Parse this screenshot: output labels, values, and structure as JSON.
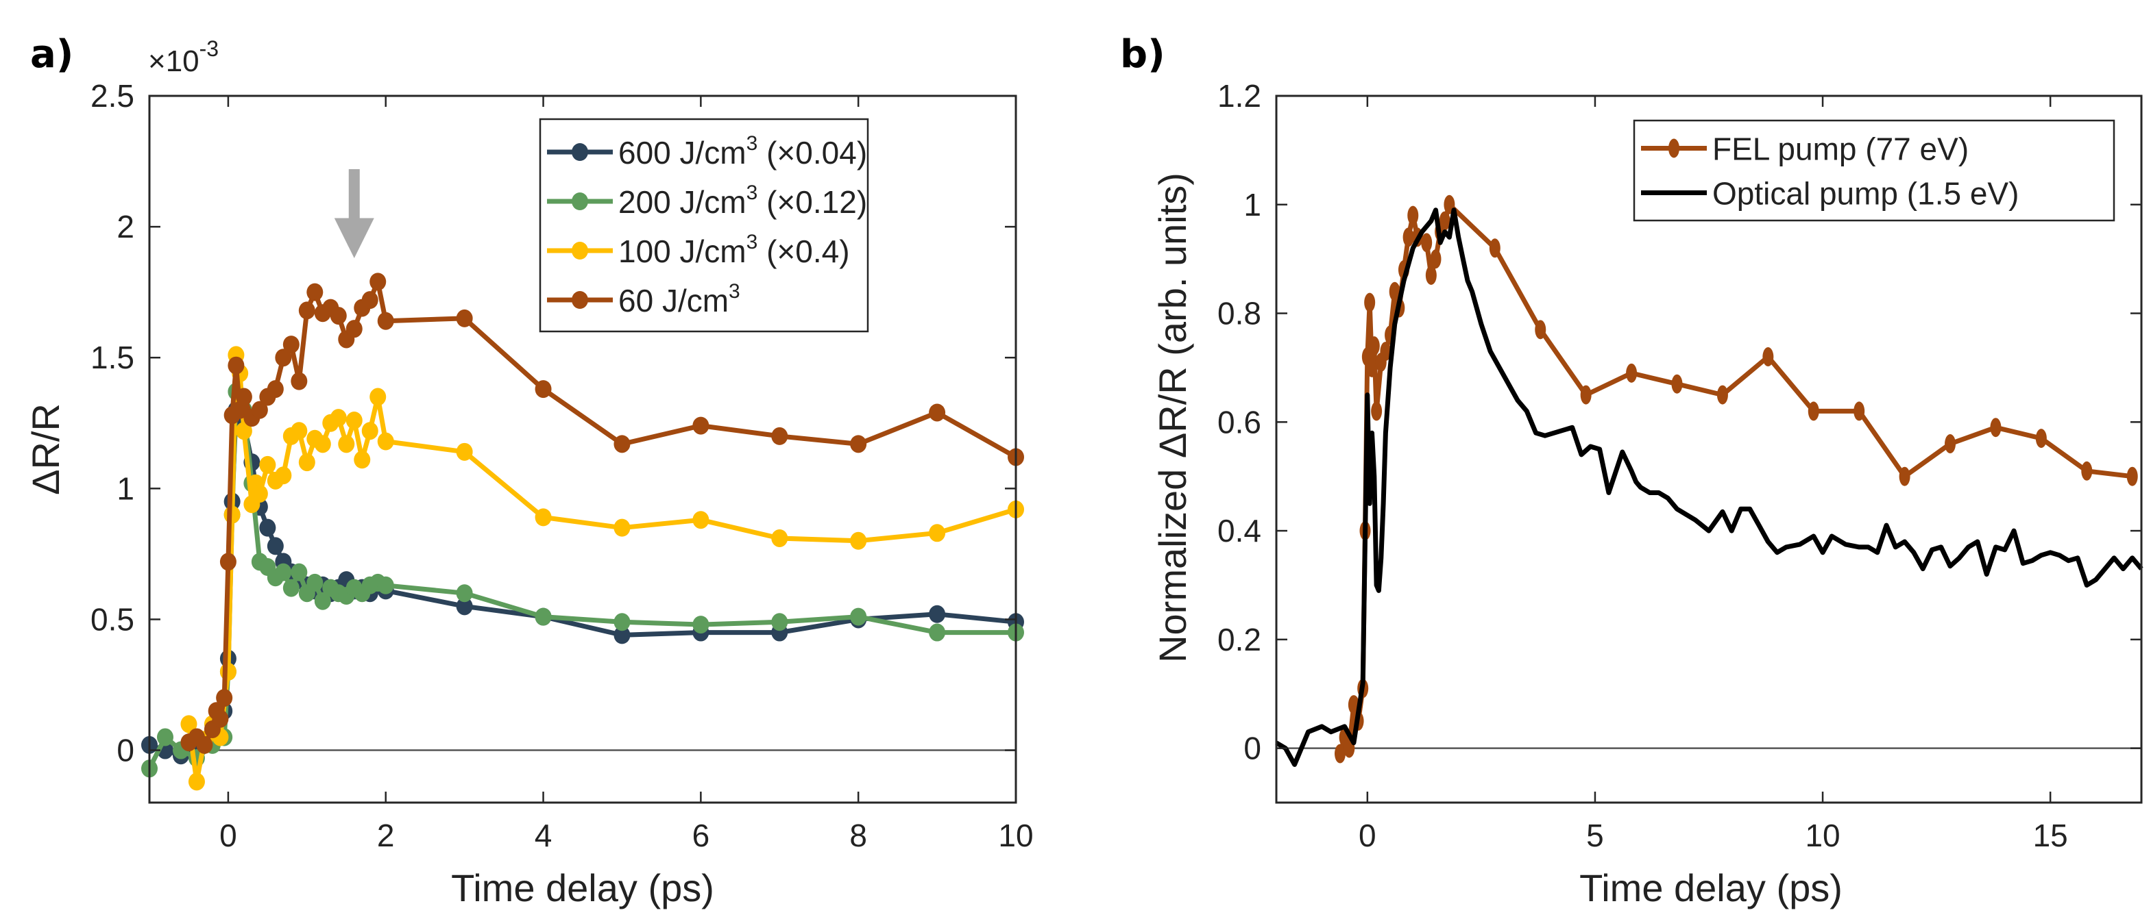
{
  "chart_data": [
    {
      "panel_label": "a)",
      "type": "line",
      "title": "",
      "xlabel": "Time delay (ps)",
      "ylabel": "ΔR/R",
      "y_exponent": "×10",
      "y_exponent_power": "-3",
      "xlim": [
        -1,
        10
      ],
      "ylim": [
        -0.2,
        2.5
      ],
      "xticks": [
        0,
        2,
        4,
        6,
        8,
        10
      ],
      "yticks": [
        0,
        0.5,
        1,
        1.5,
        2,
        2.5
      ],
      "xtick_labels": [
        "0",
        "2",
        "4",
        "6",
        "8",
        "10"
      ],
      "ytick_labels": [
        "0",
        "0.5",
        "1",
        "1.5",
        "2",
        "2.5"
      ],
      "zero_line": true,
      "grid": false,
      "legend_position": "top-right",
      "annotation": {
        "type": "arrow",
        "direction": "down",
        "x": 1.6,
        "y_from": 2.22,
        "y_to": 1.88,
        "color": "#a8a8a8"
      },
      "series": [
        {
          "name": "600 J/cm",
          "sup": "3",
          "suffix": " (×0.04)",
          "color": "#2b4259",
          "x": [
            -1.0,
            -0.8,
            -0.6,
            -0.4,
            -0.2,
            -0.05,
            0.0,
            0.05,
            0.1,
            0.2,
            0.3,
            0.4,
            0.5,
            0.6,
            0.7,
            0.8,
            0.9,
            1.0,
            1.1,
            1.2,
            1.3,
            1.4,
            1.5,
            1.6,
            1.7,
            1.8,
            1.9,
            2.0,
            3.0,
            4.0,
            5.0,
            6.0,
            7.0,
            8.0,
            9.0,
            10.0
          ],
          "y": [
            0.02,
            0.0,
            -0.02,
            0.02,
            0.05,
            0.15,
            0.35,
            0.95,
            1.3,
            1.25,
            1.1,
            0.93,
            0.85,
            0.78,
            0.72,
            0.68,
            0.65,
            0.63,
            0.61,
            0.63,
            0.6,
            0.62,
            0.65,
            0.61,
            0.62,
            0.6,
            0.63,
            0.61,
            0.55,
            0.51,
            0.44,
            0.45,
            0.45,
            0.5,
            0.52,
            0.49
          ]
        },
        {
          "name": "200 J/cm",
          "sup": "3",
          "suffix": " (×0.12)",
          "color": "#5d9c5b",
          "x": [
            -1.0,
            -0.8,
            -0.6,
            -0.4,
            -0.2,
            -0.05,
            0.0,
            0.05,
            0.1,
            0.2,
            0.3,
            0.4,
            0.5,
            0.6,
            0.7,
            0.8,
            0.9,
            1.0,
            1.1,
            1.2,
            1.3,
            1.4,
            1.5,
            1.6,
            1.7,
            1.8,
            1.9,
            2.0,
            3.0,
            4.0,
            5.0,
            6.0,
            7.0,
            8.0,
            9.0,
            10.0
          ],
          "y": [
            -0.07,
            0.05,
            0.0,
            -0.03,
            0.02,
            0.05,
            0.3,
            0.9,
            1.37,
            1.3,
            1.02,
            0.72,
            0.7,
            0.66,
            0.68,
            0.62,
            0.68,
            0.6,
            0.64,
            0.57,
            0.62,
            0.6,
            0.59,
            0.62,
            0.6,
            0.63,
            0.64,
            0.63,
            0.6,
            0.51,
            0.49,
            0.48,
            0.49,
            0.51,
            0.45,
            0.45
          ]
        },
        {
          "name": "100 J/cm",
          "sup": "3",
          "suffix": " (×0.4)",
          "color": "#ffbd00",
          "x": [
            -0.5,
            -0.4,
            -0.3,
            -0.2,
            -0.1,
            0.0,
            0.05,
            0.1,
            0.15,
            0.2,
            0.3,
            0.35,
            0.4,
            0.5,
            0.6,
            0.7,
            0.8,
            0.9,
            1.0,
            1.1,
            1.2,
            1.3,
            1.4,
            1.5,
            1.6,
            1.7,
            1.8,
            1.9,
            2.0,
            3.0,
            4.0,
            5.0,
            6.0,
            7.0,
            8.0,
            9.0,
            10.0
          ],
          "y": [
            0.1,
            -0.12,
            0.04,
            0.1,
            0.05,
            0.3,
            0.9,
            1.51,
            1.44,
            1.22,
            0.94,
            1.02,
            0.98,
            1.09,
            1.03,
            1.05,
            1.2,
            1.22,
            1.1,
            1.19,
            1.17,
            1.25,
            1.27,
            1.17,
            1.26,
            1.11,
            1.22,
            1.35,
            1.18,
            1.14,
            0.89,
            0.85,
            0.88,
            0.81,
            0.8,
            0.83,
            0.92
          ]
        },
        {
          "name": "60 J/cm",
          "sup": "3",
          "suffix": "",
          "color": "#a2490f",
          "x": [
            -0.5,
            -0.4,
            -0.3,
            -0.2,
            -0.15,
            -0.1,
            -0.05,
            0.0,
            0.05,
            0.1,
            0.15,
            0.2,
            0.3,
            0.4,
            0.5,
            0.6,
            0.7,
            0.8,
            0.9,
            1.0,
            1.1,
            1.2,
            1.3,
            1.4,
            1.5,
            1.6,
            1.7,
            1.8,
            1.9,
            2.0,
            3.0,
            4.0,
            5.0,
            6.0,
            7.0,
            8.0,
            9.0,
            10.0
          ],
          "y": [
            0.03,
            0.05,
            0.02,
            0.08,
            0.15,
            0.12,
            0.2,
            0.72,
            1.28,
            1.47,
            1.3,
            1.35,
            1.27,
            1.3,
            1.35,
            1.38,
            1.5,
            1.55,
            1.41,
            1.68,
            1.75,
            1.67,
            1.69,
            1.66,
            1.57,
            1.61,
            1.69,
            1.72,
            1.79,
            1.64,
            1.65,
            1.38,
            1.17,
            1.24,
            1.2,
            1.17,
            1.29,
            1.12
          ]
        }
      ]
    },
    {
      "panel_label": "b)",
      "type": "line",
      "title": "",
      "xlabel": "Time delay (ps)",
      "ylabel": "Normalized ΔR/R (arb. units)",
      "xlim": [
        -2,
        17
      ],
      "ylim": [
        -0.1,
        1.2
      ],
      "xticks": [
        0,
        5,
        10,
        15
      ],
      "yticks": [
        0,
        0.2,
        0.4,
        0.6,
        0.8,
        1,
        1.2
      ],
      "xtick_labels": [
        "0",
        "5",
        "10",
        "15"
      ],
      "ytick_labels": [
        "0",
        "0.2",
        "0.4",
        "0.6",
        "0.8",
        "1",
        "1.2"
      ],
      "zero_line": true,
      "grid": false,
      "legend_position": "top-right",
      "series": [
        {
          "name": "FEL pump (77 eV)",
          "color": "#a2490f",
          "markers": true,
          "x": [
            -0.6,
            -0.5,
            -0.4,
            -0.3,
            -0.2,
            -0.1,
            -0.05,
            0.0,
            0.05,
            0.1,
            0.15,
            0.2,
            0.3,
            0.4,
            0.5,
            0.6,
            0.7,
            0.8,
            0.9,
            1.0,
            1.1,
            1.3,
            1.4,
            1.5,
            1.6,
            1.7,
            1.8,
            2.8,
            3.8,
            4.8,
            5.8,
            6.8,
            7.8,
            8.8,
            9.8,
            10.8,
            11.8,
            12.8,
            13.8,
            14.8,
            15.8,
            16.8
          ],
          "y": [
            -0.01,
            0.02,
            0.0,
            0.08,
            0.05,
            0.11,
            0.4,
            0.72,
            0.82,
            0.7,
            0.74,
            0.62,
            0.71,
            0.73,
            0.76,
            0.84,
            0.81,
            0.88,
            0.94,
            0.98,
            0.94,
            0.93,
            0.87,
            0.9,
            0.95,
            0.97,
            1.0,
            0.92,
            0.77,
            0.65,
            0.69,
            0.67,
            0.65,
            0.72,
            0.62,
            0.62,
            0.5,
            0.56,
            0.59,
            0.57,
            0.51,
            0.5
          ]
        },
        {
          "name": "Optical pump (1.5 eV)",
          "color": "#000000",
          "markers": false,
          "x": [
            -2.0,
            -1.8,
            -1.6,
            -1.5,
            -1.3,
            -1.0,
            -0.8,
            -0.5,
            -0.3,
            -0.1,
            0.0,
            0.05,
            0.1,
            0.15,
            0.2,
            0.25,
            0.3,
            0.35,
            0.4,
            0.5,
            0.6,
            0.7,
            0.8,
            1.0,
            1.2,
            1.4,
            1.5,
            1.6,
            1.7,
            1.8,
            1.9,
            2.0,
            2.1,
            2.2,
            2.3,
            2.5,
            2.7,
            2.9,
            3.1,
            3.3,
            3.5,
            3.7,
            3.9,
            4.1,
            4.3,
            4.5,
            4.7,
            4.9,
            5.1,
            5.3,
            5.5,
            5.6,
            5.8,
            5.9,
            6.0,
            6.2,
            6.4,
            6.6,
            6.8,
            7.0,
            7.2,
            7.5,
            7.8,
            8.0,
            8.2,
            8.4,
            8.6,
            8.8,
            9.0,
            9.2,
            9.5,
            9.8,
            10.0,
            10.2,
            10.5,
            10.8,
            11.0,
            11.2,
            11.4,
            11.6,
            11.8,
            12.0,
            12.2,
            12.4,
            12.6,
            12.8,
            13.0,
            13.2,
            13.4,
            13.6,
            13.8,
            14.0,
            14.2,
            14.4,
            14.6,
            14.8,
            15.0,
            15.2,
            15.4,
            15.6,
            15.8,
            16.0,
            16.2,
            16.4,
            16.6,
            16.8,
            17.0
          ],
          "y": [
            0.01,
            0.0,
            -0.03,
            -0.01,
            0.03,
            0.04,
            0.03,
            0.04,
            0.01,
            0.12,
            0.65,
            0.45,
            0.58,
            0.5,
            0.3,
            0.29,
            0.35,
            0.45,
            0.58,
            0.7,
            0.78,
            0.82,
            0.86,
            0.92,
            0.95,
            0.97,
            0.99,
            0.93,
            0.95,
            0.94,
            0.99,
            0.94,
            0.9,
            0.86,
            0.84,
            0.78,
            0.73,
            0.7,
            0.67,
            0.64,
            0.62,
            0.58,
            0.575,
            0.58,
            0.585,
            0.59,
            0.54,
            0.555,
            0.55,
            0.47,
            0.52,
            0.545,
            0.51,
            0.49,
            0.48,
            0.47,
            0.47,
            0.46,
            0.44,
            0.43,
            0.42,
            0.4,
            0.435,
            0.4,
            0.44,
            0.44,
            0.41,
            0.38,
            0.36,
            0.37,
            0.375,
            0.39,
            0.36,
            0.39,
            0.375,
            0.37,
            0.37,
            0.36,
            0.41,
            0.37,
            0.38,
            0.36,
            0.33,
            0.365,
            0.37,
            0.335,
            0.35,
            0.37,
            0.38,
            0.32,
            0.37,
            0.365,
            0.4,
            0.34,
            0.345,
            0.355,
            0.36,
            0.355,
            0.345,
            0.35,
            0.3,
            0.31,
            0.33,
            0.35,
            0.33,
            0.35,
            0.33
          ]
        }
      ]
    }
  ]
}
